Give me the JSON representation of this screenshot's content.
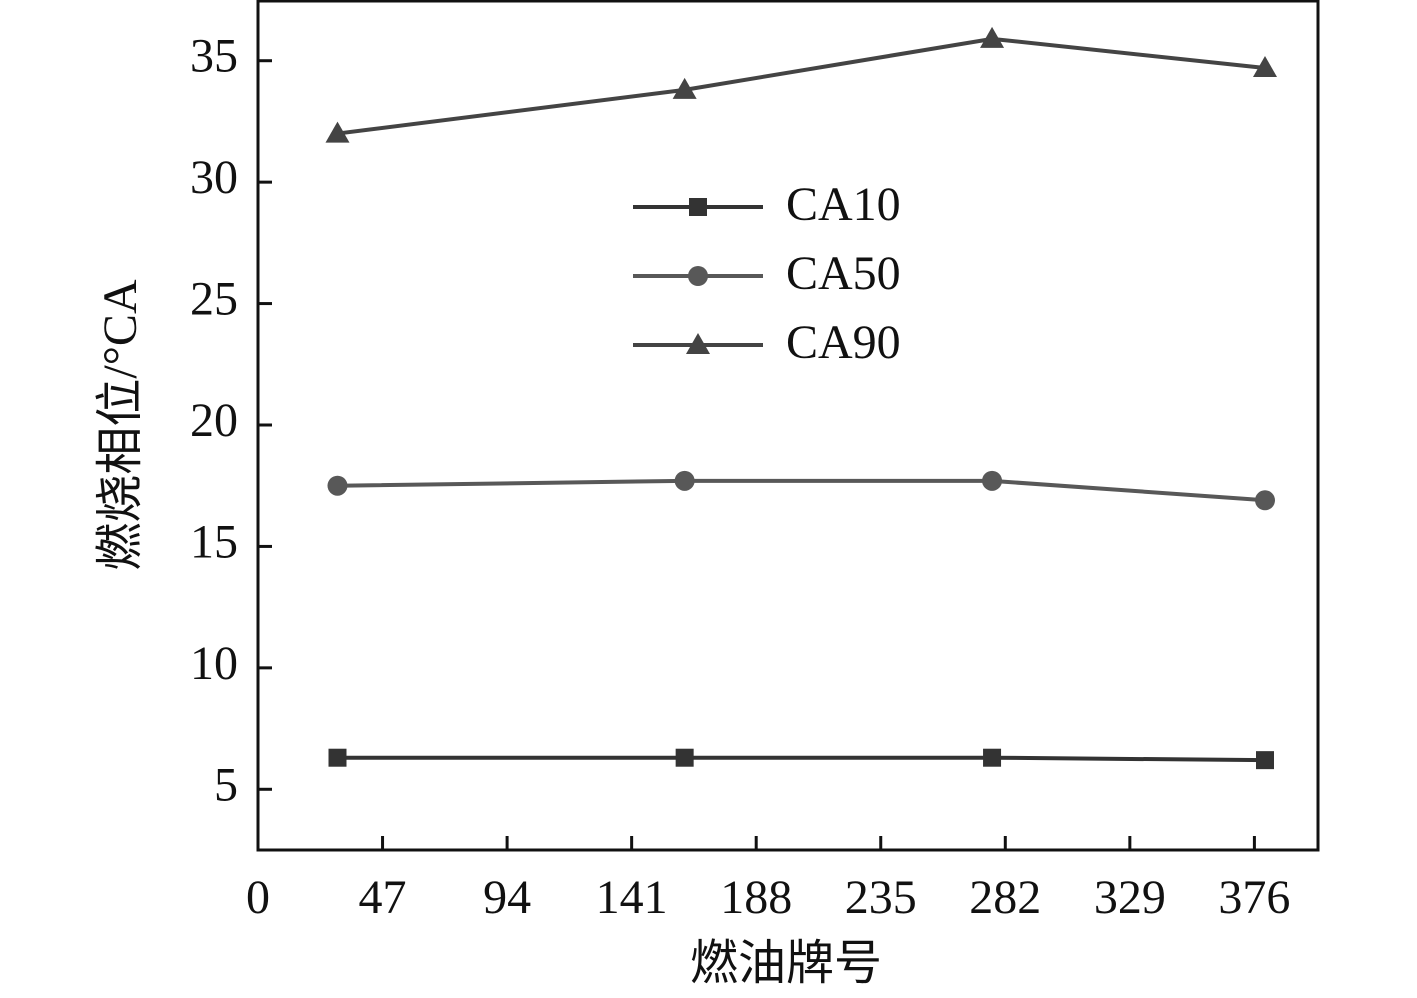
{
  "chart_data": {
    "type": "line",
    "x_label": "燃油牌号",
    "y_label": "燃烧相位/°CA",
    "x": [
      30,
      161,
      277,
      380
    ],
    "series": [
      {
        "name": "CA10",
        "color": "#333333",
        "marker": "square",
        "values": [
          6.3,
          6.3,
          6.3,
          6.2
        ]
      },
      {
        "name": "CA50",
        "color": "#585858",
        "marker": "circle",
        "values": [
          17.5,
          17.7,
          17.7,
          16.9
        ]
      },
      {
        "name": "CA90",
        "color": "#444444",
        "marker": "triangle",
        "values": [
          32,
          33.8,
          35.9,
          34.7
        ]
      }
    ],
    "xlim": [
      0,
      400
    ],
    "xticks": [
      0,
      47,
      94,
      141,
      188,
      235,
      282,
      329,
      376
    ],
    "ylim": [
      2.5,
      37.5
    ],
    "yticks": [
      5,
      10,
      15,
      20,
      25,
      30,
      35
    ],
    "grid": false
  }
}
